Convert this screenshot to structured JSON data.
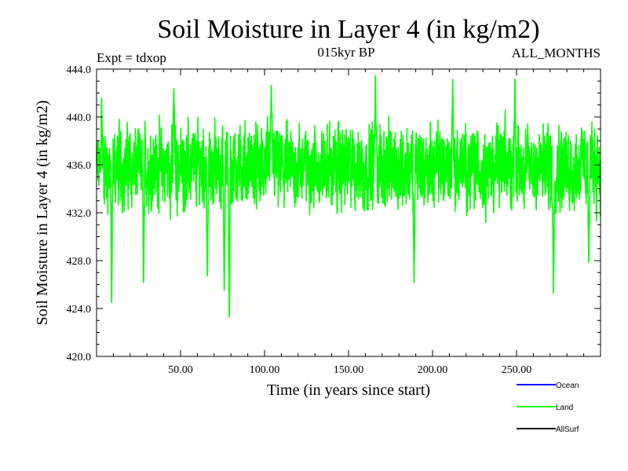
{
  "chart_data": {
    "type": "line",
    "title": "Soil Moisture in Layer 4 (in kg/m2)",
    "subtitle_left": "Expt = tdxop",
    "subtitle_center": "015kyr BP",
    "subtitle_right": "ALL_MONTHS",
    "xlabel": "Time (in years since start)",
    "ylabel": "Soil Moisture in Layer 4 (in kg/m2)",
    "xlim": [
      0,
      300
    ],
    "ylim": [
      420,
      444
    ],
    "xticks": [
      50,
      100,
      150,
      200,
      250
    ],
    "xtick_labels": [
      "50.00",
      "100.00",
      "150.00",
      "200.00",
      "250.00"
    ],
    "yticks": [
      420,
      424,
      428,
      432,
      436,
      440,
      444
    ],
    "ytick_labels": [
      "420.0",
      "424.0",
      "428.0",
      "432.0",
      "436.0",
      "440.0",
      "444.0"
    ],
    "legend_position": "bottom-right",
    "legend": [
      {
        "name": "Ocean",
        "color": "#0000ff"
      },
      {
        "name": "Land",
        "color": "#00ff00"
      },
      {
        "name": "AllSurf",
        "color": "#000000"
      }
    ],
    "series": [
      {
        "name": "Land",
        "color": "#00ff00",
        "x_start": 0,
        "x_step": 0.0833,
        "mean": 435.8,
        "spread_min": 422.6,
        "spread_max": 443.6,
        "notable_points": [
          {
            "x": 3,
            "y": 441.6
          },
          {
            "x": 9,
            "y": 424.4
          },
          {
            "x": 28,
            "y": 426.0
          },
          {
            "x": 46,
            "y": 442.6
          },
          {
            "x": 66,
            "y": 426.3
          },
          {
            "x": 76,
            "y": 425.0
          },
          {
            "x": 79,
            "y": 422.6
          },
          {
            "x": 104,
            "y": 443.2
          },
          {
            "x": 166,
            "y": 443.6
          },
          {
            "x": 189,
            "y": 426.0
          },
          {
            "x": 212,
            "y": 443.2
          },
          {
            "x": 249,
            "y": 443.4
          },
          {
            "x": 272,
            "y": 424.8
          },
          {
            "x": 293,
            "y": 427.3
          }
        ]
      }
    ]
  }
}
